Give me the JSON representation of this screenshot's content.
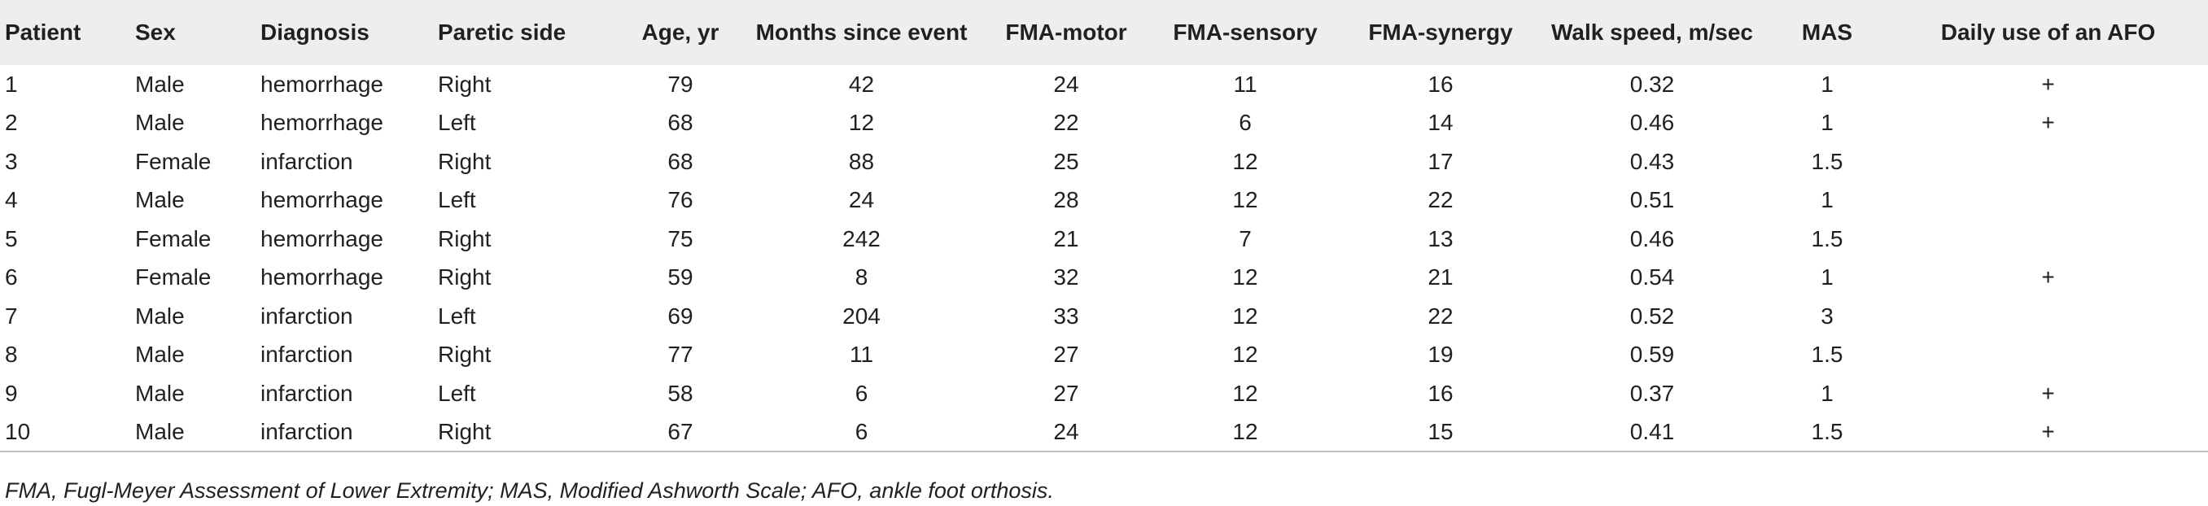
{
  "columns": [
    "Patient",
    "Sex",
    "Diagnosis",
    "Paretic side",
    "Age, yr",
    "Months since event",
    "FMA-motor",
    "FMA-sensory",
    "FMA-synergy",
    "Walk speed, m/sec",
    "MAS",
    "Daily use of an AFO"
  ],
  "rows": [
    [
      "1",
      "Male",
      "hemorrhage",
      "Right",
      "79",
      "42",
      "24",
      "11",
      "16",
      "0.32",
      "1",
      "+"
    ],
    [
      "2",
      "Male",
      "hemorrhage",
      "Left",
      "68",
      "12",
      "22",
      "6",
      "14",
      "0.46",
      "1",
      "+"
    ],
    [
      "3",
      "Female",
      "infarction",
      "Right",
      "68",
      "88",
      "25",
      "12",
      "17",
      "0.43",
      "1.5",
      ""
    ],
    [
      "4",
      "Male",
      "hemorrhage",
      "Left",
      "76",
      "24",
      "28",
      "12",
      "22",
      "0.51",
      "1",
      ""
    ],
    [
      "5",
      "Female",
      "hemorrhage",
      "Right",
      "75",
      "242",
      "21",
      "7",
      "13",
      "0.46",
      "1.5",
      ""
    ],
    [
      "6",
      "Female",
      "hemorrhage",
      "Right",
      "59",
      "8",
      "32",
      "12",
      "21",
      "0.54",
      "1",
      "+"
    ],
    [
      "7",
      "Male",
      "infarction",
      "Left",
      "69",
      "204",
      "33",
      "12",
      "22",
      "0.52",
      "3",
      ""
    ],
    [
      "8",
      "Male",
      "infarction",
      "Right",
      "77",
      "11",
      "27",
      "12",
      "19",
      "0.59",
      "1.5",
      ""
    ],
    [
      "9",
      "Male",
      "infarction",
      "Left",
      "58",
      "6",
      "27",
      "12",
      "16",
      "0.37",
      "1",
      "+"
    ],
    [
      "10",
      "Male",
      "infarction",
      "Right",
      "67",
      "6",
      "24",
      "12",
      "15",
      "0.41",
      "1.5",
      "+"
    ]
  ],
  "footnote": "FMA, Fugl-Meyer Assessment of Lower Extremity; MAS, Modified Ashworth Scale; AFO, ankle foot orthosis."
}
